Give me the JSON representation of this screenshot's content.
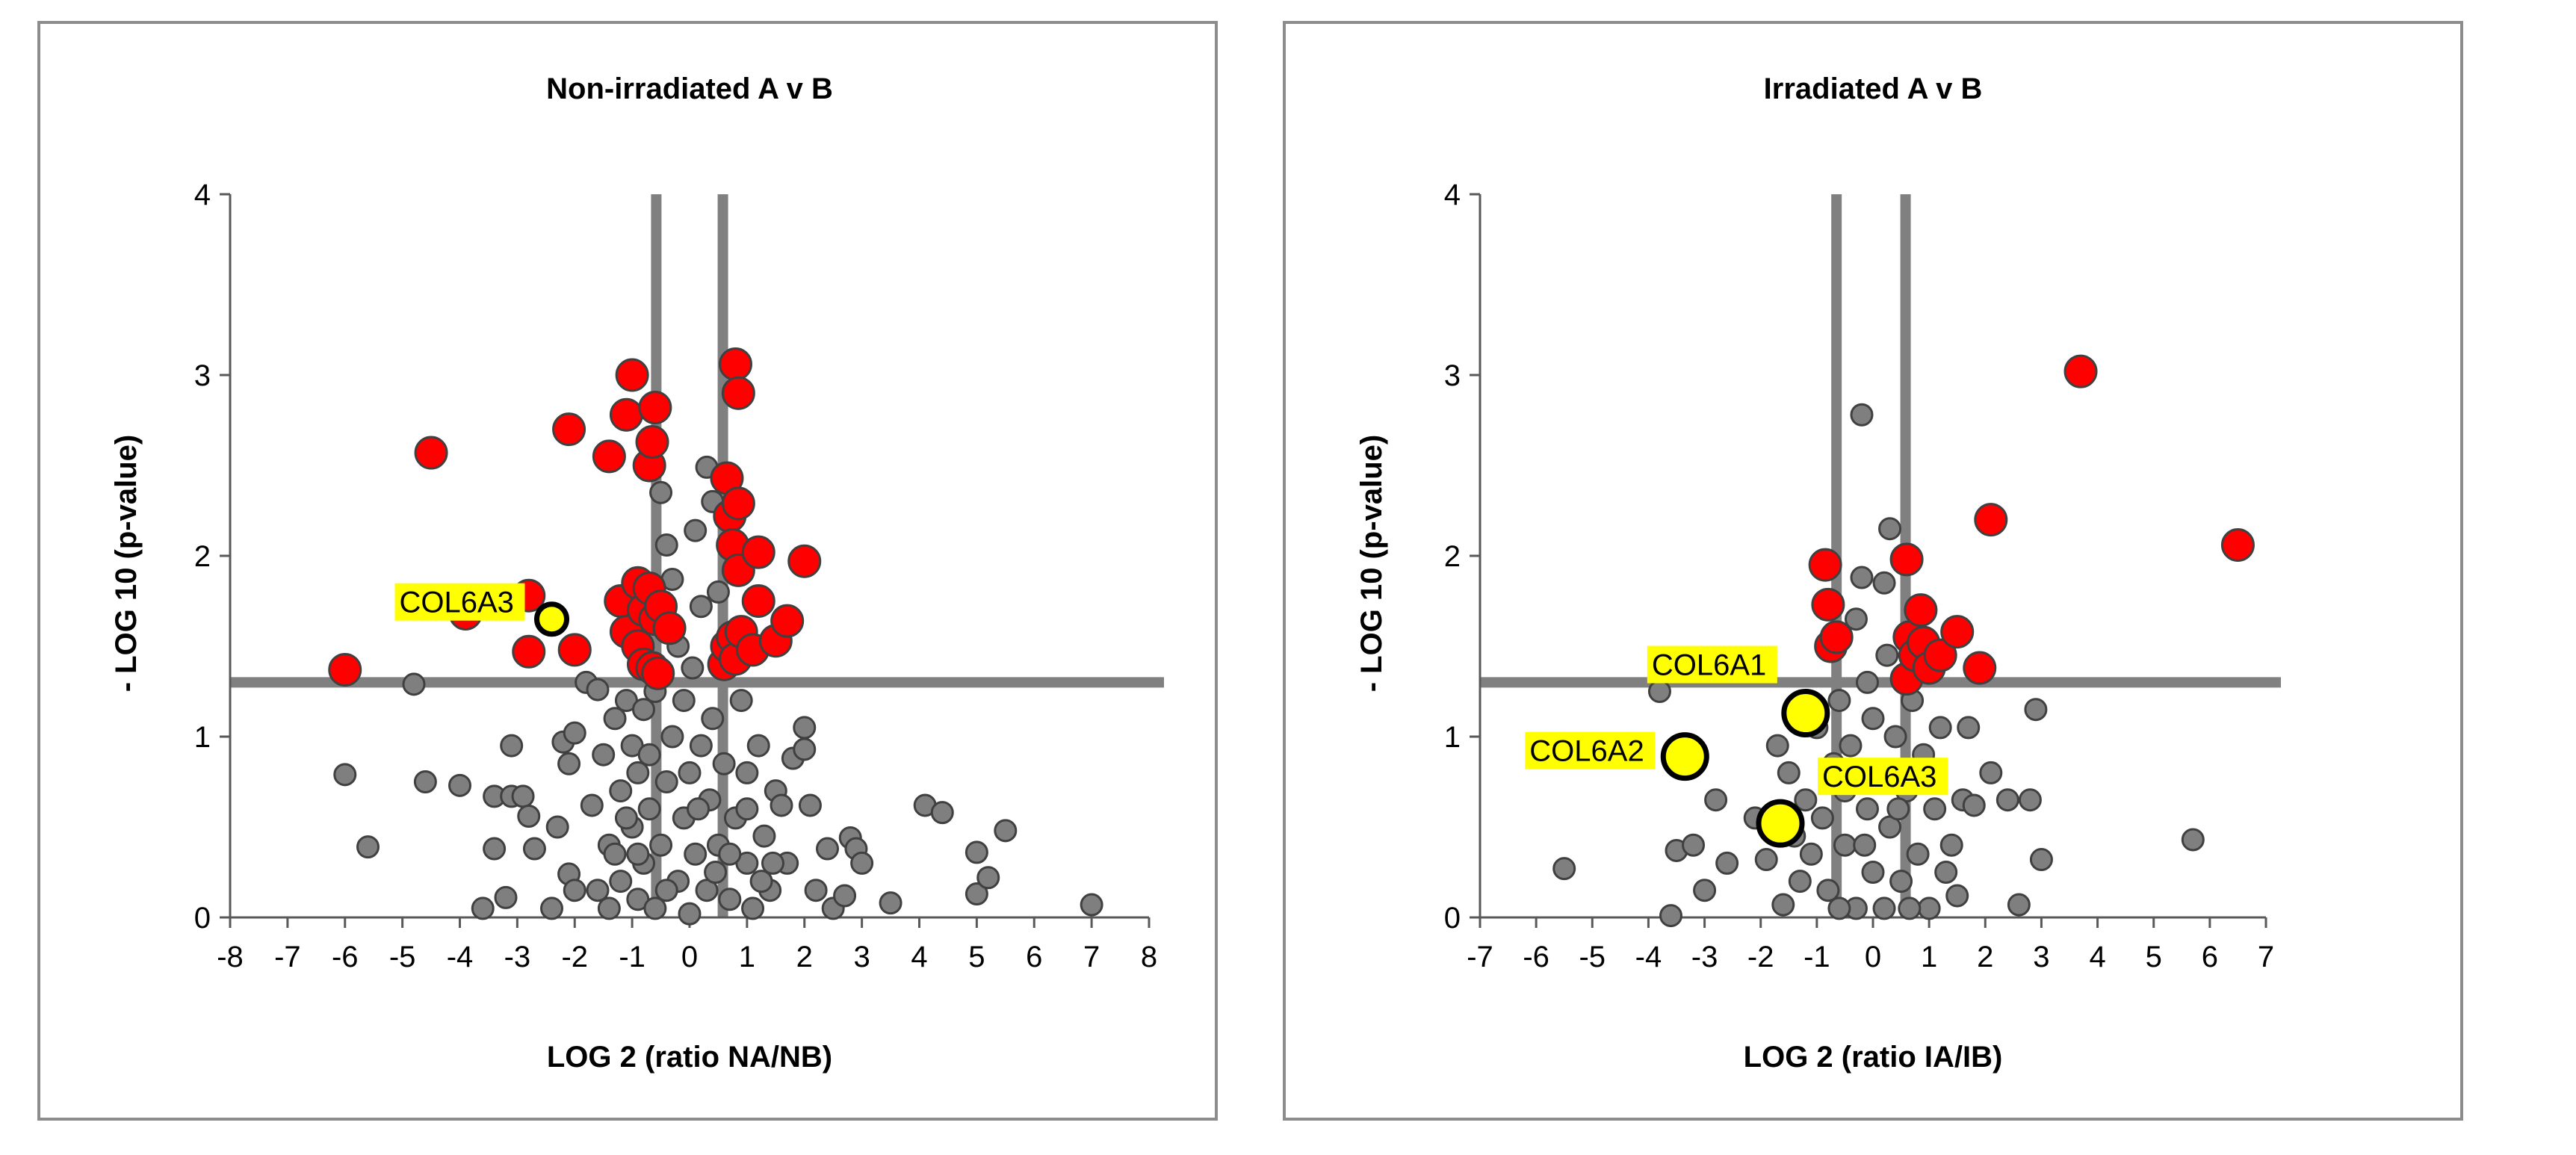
{
  "colors": {
    "background": "#ffffff",
    "border": "#8c8c8c",
    "axis": "#595959",
    "threshold": "#808080",
    "grey_point_fill": "#7f7f7f",
    "grey_point_stroke": "#404040",
    "red_point_fill": "#ff0000",
    "red_point_stroke": "#404040",
    "highlight_fill": "#ffff00",
    "highlight_stroke": "#000000",
    "label_bg": "#ffff00"
  },
  "chart_data": [
    {
      "type": "scatter",
      "title": "Non-irradiated A v B",
      "xlabel": "LOG 2 (ratio NA/NB)",
      "ylabel": "- LOG 10 (p-value)",
      "xlim": [
        -8,
        8
      ],
      "ylim": [
        0,
        4
      ],
      "xticks": [
        -8,
        -7,
        -6,
        -5,
        -4,
        -3,
        -2,
        -1,
        0,
        1,
        2,
        3,
        4,
        5,
        6,
        7,
        8
      ],
      "yticks": [
        0,
        1,
        2,
        3,
        4
      ],
      "thresholds": {
        "x": [
          -0.58,
          0.58
        ],
        "y": 1.3
      },
      "series": [
        {
          "name": "significant",
          "color": "#ff0000",
          "points": [
            [
              -6.0,
              1.37
            ],
            [
              -4.5,
              2.57
            ],
            [
              -2.8,
              1.78
            ],
            [
              -2.8,
              1.47
            ],
            [
              -2.1,
              2.7
            ],
            [
              -2.0,
              1.48
            ],
            [
              -1.4,
              2.55
            ],
            [
              -1.2,
              1.75
            ],
            [
              -1.1,
              2.78
            ],
            [
              -1.1,
              1.58
            ],
            [
              -1.0,
              3.0
            ],
            [
              -0.9,
              1.85
            ],
            [
              -0.9,
              1.5
            ],
            [
              -0.8,
              1.7
            ],
            [
              -0.8,
              1.4
            ],
            [
              -0.7,
              2.5
            ],
            [
              -0.7,
              1.82
            ],
            [
              -0.65,
              2.63
            ],
            [
              -0.65,
              1.38
            ],
            [
              -0.6,
              2.82
            ],
            [
              -0.6,
              1.65
            ],
            [
              -0.55,
              1.35
            ],
            [
              -0.5,
              1.72
            ],
            [
              0.6,
              1.4
            ],
            [
              0.65,
              2.43
            ],
            [
              0.65,
              1.5
            ],
            [
              0.7,
              2.22
            ],
            [
              0.75,
              2.06
            ],
            [
              0.75,
              1.55
            ],
            [
              0.8,
              3.06
            ],
            [
              0.8,
              1.43
            ],
            [
              0.85,
              2.9
            ],
            [
              0.85,
              2.29
            ],
            [
              0.85,
              1.92
            ],
            [
              0.9,
              1.58
            ],
            [
              1.1,
              1.48
            ],
            [
              1.2,
              2.02
            ],
            [
              1.2,
              1.75
            ],
            [
              1.5,
              1.53
            ],
            [
              1.7,
              1.64
            ],
            [
              2.0,
              1.97
            ],
            [
              -3.9,
              1.68
            ],
            [
              -0.35,
              1.6
            ]
          ]
        },
        {
          "name": "not significant",
          "color": "#7f7f7f",
          "points": [
            [
              -6.0,
              0.79
            ],
            [
              -5.6,
              0.39
            ],
            [
              -4.8,
              1.29
            ],
            [
              -4.6,
              0.75
            ],
            [
              -4.0,
              0.73
            ],
            [
              -3.6,
              0.05
            ],
            [
              -3.4,
              0.38
            ],
            [
              -3.4,
              0.67
            ],
            [
              -3.2,
              0.11
            ],
            [
              -3.1,
              0.95
            ],
            [
              -3.1,
              0.67
            ],
            [
              -2.9,
              0.67
            ],
            [
              -2.8,
              0.56
            ],
            [
              -2.7,
              0.38
            ],
            [
              -2.4,
              0.05
            ],
            [
              -2.3,
              0.5
            ],
            [
              -2.2,
              0.97
            ],
            [
              -2.1,
              0.24
            ],
            [
              -2.1,
              0.85
            ],
            [
              -2.0,
              1.02
            ],
            [
              -2.0,
              0.15
            ],
            [
              -1.8,
              1.3
            ],
            [
              -1.7,
              0.62
            ],
            [
              -1.6,
              1.26
            ],
            [
              -1.5,
              0.9
            ],
            [
              -1.4,
              0.4
            ],
            [
              -1.3,
              1.1
            ],
            [
              -1.2,
              0.7
            ],
            [
              -1.2,
              0.2
            ],
            [
              -1.1,
              1.2
            ],
            [
              -1.0,
              0.95
            ],
            [
              -1.0,
              0.5
            ],
            [
              -0.9,
              0.1
            ],
            [
              -0.9,
              0.8
            ],
            [
              -0.8,
              1.15
            ],
            [
              -0.8,
              0.3
            ],
            [
              -0.7,
              0.6
            ],
            [
              -0.7,
              0.9
            ],
            [
              -0.6,
              0.05
            ],
            [
              -0.6,
              1.25
            ],
            [
              -0.5,
              0.4
            ],
            [
              -0.5,
              2.35
            ],
            [
              -0.4,
              2.06
            ],
            [
              -0.4,
              0.75
            ],
            [
              -0.3,
              1.87
            ],
            [
              -0.3,
              1.0
            ],
            [
              -0.2,
              0.2
            ],
            [
              -0.2,
              1.5
            ],
            [
              -0.1,
              0.55
            ],
            [
              -0.1,
              1.2
            ],
            [
              0.0,
              0.02
            ],
            [
              0.0,
              0.8
            ],
            [
              0.05,
              1.38
            ],
            [
              0.1,
              0.35
            ],
            [
              0.1,
              2.14
            ],
            [
              0.2,
              0.95
            ],
            [
              0.2,
              1.72
            ],
            [
              0.3,
              2.49
            ],
            [
              0.3,
              0.15
            ],
            [
              0.35,
              0.65
            ],
            [
              0.4,
              1.1
            ],
            [
              0.4,
              2.3
            ],
            [
              0.5,
              0.4
            ],
            [
              0.5,
              1.8
            ],
            [
              0.6,
              0.85
            ],
            [
              0.7,
              0.1
            ],
            [
              0.8,
              0.55
            ],
            [
              0.9,
              1.2
            ],
            [
              1.0,
              0.3
            ],
            [
              1.0,
              0.8
            ],
            [
              1.1,
              0.05
            ],
            [
              1.2,
              0.95
            ],
            [
              1.3,
              0.45
            ],
            [
              1.4,
              0.15
            ],
            [
              1.5,
              0.7
            ],
            [
              1.6,
              0.62
            ],
            [
              1.7,
              0.3
            ],
            [
              1.8,
              0.88
            ],
            [
              2.0,
              1.05
            ],
            [
              2.0,
              0.93
            ],
            [
              2.1,
              0.62
            ],
            [
              2.2,
              0.15
            ],
            [
              2.4,
              0.38
            ],
            [
              2.5,
              0.05
            ],
            [
              2.7,
              0.12
            ],
            [
              2.8,
              0.44
            ],
            [
              2.9,
              0.38
            ],
            [
              3.0,
              0.3
            ],
            [
              3.5,
              0.08
            ],
            [
              4.1,
              0.62
            ],
            [
              4.4,
              0.58
            ],
            [
              5.0,
              0.13
            ],
            [
              5.0,
              0.36
            ],
            [
              5.2,
              0.22
            ],
            [
              5.5,
              0.48
            ],
            [
              7.0,
              0.07
            ],
            [
              -1.4,
              0.05
            ],
            [
              -1.1,
              0.55
            ],
            [
              -0.9,
              0.35
            ],
            [
              -0.4,
              0.15
            ],
            [
              0.15,
              0.6
            ],
            [
              0.45,
              0.25
            ],
            [
              0.7,
              0.35
            ],
            [
              1.25,
              0.2
            ],
            [
              -1.6,
              0.15
            ],
            [
              -1.3,
              0.35
            ],
            [
              1.0,
              0.6
            ],
            [
              1.45,
              0.3
            ]
          ]
        },
        {
          "name": "highlighted",
          "color": "#ffff00",
          "points": [
            [
              -2.4,
              1.65
            ]
          ]
        }
      ],
      "annotations": [
        {
          "text": "COL6A3",
          "x": -2.4,
          "y": 1.65,
          "placement": "left"
        }
      ]
    },
    {
      "type": "scatter",
      "title": "Irradiated A v B",
      "xlabel": "LOG 2 (ratio IA/IB)",
      "ylabel": "- LOG 10 (p-value)",
      "xlim": [
        -7,
        7
      ],
      "ylim": [
        0,
        4
      ],
      "xticks": [
        -7,
        -6,
        -5,
        -4,
        -3,
        -2,
        -1,
        0,
        1,
        2,
        3,
        4,
        5,
        6,
        7
      ],
      "yticks": [
        0,
        1,
        2,
        3,
        4
      ],
      "thresholds": {
        "x": [
          -0.65,
          0.58
        ],
        "y": 1.3
      },
      "series": [
        {
          "name": "significant",
          "color": "#ff0000",
          "points": [
            [
              -0.85,
              1.95
            ],
            [
              -0.8,
              1.73
            ],
            [
              -0.75,
              1.5
            ],
            [
              -0.65,
              1.55
            ],
            [
              0.6,
              1.98
            ],
            [
              0.6,
              1.32
            ],
            [
              0.65,
              1.55
            ],
            [
              0.75,
              1.45
            ],
            [
              0.85,
              1.7
            ],
            [
              0.9,
              1.52
            ],
            [
              1.0,
              1.38
            ],
            [
              1.2,
              1.45
            ],
            [
              1.5,
              1.58
            ],
            [
              1.9,
              1.38
            ],
            [
              2.1,
              2.2
            ],
            [
              3.7,
              3.02
            ],
            [
              6.5,
              2.06
            ]
          ]
        },
        {
          "name": "not significant",
          "color": "#7f7f7f",
          "points": [
            [
              -5.5,
              0.27
            ],
            [
              -3.8,
              1.25
            ],
            [
              -3.6,
              0.01
            ],
            [
              -3.5,
              0.37
            ],
            [
              -3.2,
              0.4
            ],
            [
              -3.0,
              0.15
            ],
            [
              -2.8,
              0.65
            ],
            [
              -2.6,
              0.3
            ],
            [
              -2.1,
              0.55
            ],
            [
              -1.9,
              0.32
            ],
            [
              -1.7,
              0.95
            ],
            [
              -1.6,
              0.07
            ],
            [
              -1.5,
              0.8
            ],
            [
              -1.4,
              0.45
            ],
            [
              -1.3,
              0.2
            ],
            [
              -1.2,
              0.65
            ],
            [
              -1.1,
              0.35
            ],
            [
              -1.0,
              1.05
            ],
            [
              -0.9,
              0.55
            ],
            [
              -0.8,
              0.15
            ],
            [
              -0.7,
              0.85
            ],
            [
              -0.6,
              1.2
            ],
            [
              -0.5,
              0.4
            ],
            [
              -0.4,
              0.95
            ],
            [
              -0.3,
              0.05
            ],
            [
              -0.3,
              1.65
            ],
            [
              -0.2,
              1.88
            ],
            [
              -0.2,
              2.78
            ],
            [
              -0.1,
              0.6
            ],
            [
              -0.1,
              1.3
            ],
            [
              0.0,
              0.25
            ],
            [
              0.0,
              1.1
            ],
            [
              0.1,
              0.75
            ],
            [
              0.2,
              0.05
            ],
            [
              0.2,
              1.85
            ],
            [
              0.3,
              2.15
            ],
            [
              0.3,
              0.5
            ],
            [
              0.4,
              1.0
            ],
            [
              0.5,
              0.2
            ],
            [
              0.6,
              0.7
            ],
            [
              0.7,
              1.2
            ],
            [
              0.8,
              0.35
            ],
            [
              0.9,
              0.9
            ],
            [
              1.0,
              0.05
            ],
            [
              1.1,
              0.6
            ],
            [
              1.2,
              1.05
            ],
            [
              1.3,
              0.25
            ],
            [
              1.4,
              0.4
            ],
            [
              1.5,
              0.12
            ],
            [
              1.6,
              0.65
            ],
            [
              1.7,
              1.05
            ],
            [
              1.8,
              0.62
            ],
            [
              2.1,
              0.8
            ],
            [
              2.4,
              0.65
            ],
            [
              2.6,
              0.07
            ],
            [
              2.8,
              0.65
            ],
            [
              2.9,
              1.15
            ],
            [
              3.0,
              0.32
            ],
            [
              5.7,
              0.43
            ],
            [
              -0.6,
              0.05
            ],
            [
              0.45,
              0.6
            ],
            [
              -0.5,
              0.7
            ],
            [
              0.65,
              0.05
            ],
            [
              -0.15,
              0.4
            ],
            [
              0.25,
              1.45
            ]
          ]
        },
        {
          "name": "highlighted",
          "color": "#ffff00",
          "points": [
            [
              -1.2,
              1.13
            ],
            [
              -3.35,
              0.89
            ],
            [
              -1.65,
              0.52
            ]
          ]
        }
      ],
      "annotations": [
        {
          "text": "COL6A1",
          "x": -1.2,
          "y": 1.13,
          "placement": "upper-left"
        },
        {
          "text": "COL6A2",
          "x": -3.35,
          "y": 0.89,
          "placement": "left"
        },
        {
          "text": "COL6A3",
          "x": -1.65,
          "y": 0.52,
          "placement": "upper-right"
        }
      ]
    }
  ]
}
